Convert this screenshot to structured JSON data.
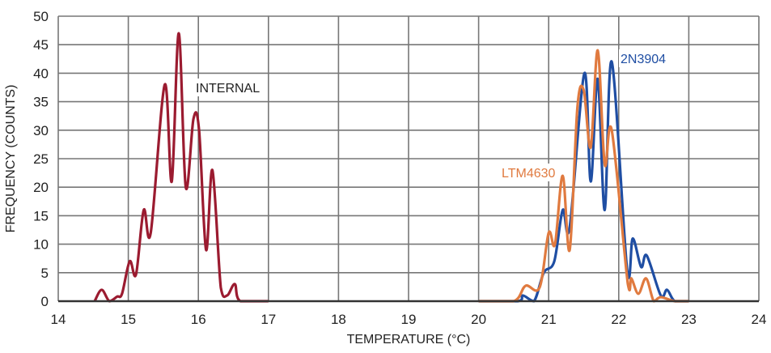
{
  "chart_data": {
    "type": "line",
    "title": "",
    "xlabel": "TEMPERATURE (°C)",
    "ylabel": "FREQUENCY (COUNTS)",
    "xlim": [
      14,
      24
    ],
    "ylim": [
      0,
      50
    ],
    "xticks": [
      "14",
      "15",
      "16",
      "17",
      "18",
      "19",
      "20",
      "21",
      "22",
      "23",
      "24"
    ],
    "yticks": [
      "0",
      "5",
      "10",
      "15",
      "20",
      "25",
      "30",
      "35",
      "40",
      "45",
      "50"
    ],
    "grid": true,
    "legend": "none (direct labels)",
    "series": [
      {
        "name": "INTERNAL",
        "color": "#9b1b30",
        "x": [
          14.52,
          14.62,
          14.73,
          14.84,
          14.91,
          15.02,
          15.11,
          15.22,
          15.32,
          15.52,
          15.62,
          15.72,
          15.82,
          15.93,
          16.01,
          16.11,
          16.2,
          16.32,
          16.41,
          16.52,
          16.6,
          17.0
        ],
        "y": [
          0,
          2,
          0,
          0.8,
          1.3,
          7,
          4.7,
          16,
          12,
          38,
          21,
          47,
          20,
          32,
          30,
          9,
          23,
          2.4,
          1,
          3,
          0,
          0
        ]
      },
      {
        "name": "2N3904",
        "color": "#1f4ea3",
        "x": [
          20.0,
          20.56,
          20.63,
          20.79,
          20.93,
          21.08,
          21.2,
          21.3,
          21.51,
          21.6,
          21.7,
          21.8,
          21.9,
          22.12,
          22.2,
          22.32,
          22.4,
          22.6,
          22.69,
          22.8,
          23.0
        ],
        "y": [
          0,
          0,
          1,
          0,
          5,
          7,
          16,
          13,
          40,
          21,
          39,
          16,
          42,
          5.5,
          11,
          6,
          8,
          1,
          2,
          0,
          0
        ]
      },
      {
        "name": "LTM4630",
        "color": "#e07a3f",
        "x": [
          20.0,
          20.5,
          20.67,
          20.87,
          21.0,
          21.09,
          21.2,
          21.3,
          21.41,
          21.5,
          21.6,
          21.7,
          21.8,
          21.9,
          22.13,
          22.18,
          22.28,
          22.39,
          22.5,
          22.6,
          22.8,
          23.0
        ],
        "y": [
          0,
          0,
          2.7,
          2.4,
          12,
          10,
          22,
          9,
          34,
          37,
          27,
          44,
          24,
          30,
          3,
          4,
          1.3,
          4,
          0,
          0.7,
          0,
          0
        ]
      }
    ]
  }
}
